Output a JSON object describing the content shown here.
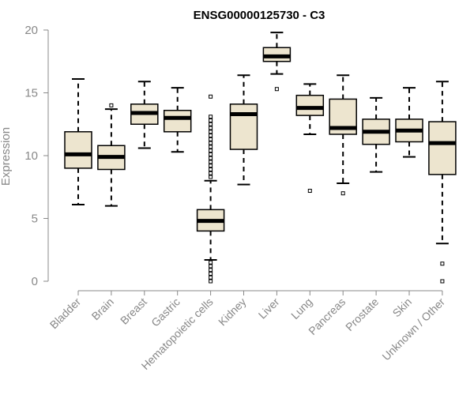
{
  "chart_data": {
    "type": "boxplot",
    "title": "ENSG00000125730 - C3",
    "xlabel": "",
    "ylabel": "Expression",
    "ylim": [
      0,
      20
    ],
    "yticks": [
      0,
      5,
      10,
      15,
      20
    ],
    "box_color": "#ede5cf",
    "line_color": "#000000",
    "axis_color": "#888888",
    "categories": [
      "Bladder",
      "Brain",
      "Breast",
      "Gastric",
      "Hematopoietic cells",
      "Kidney",
      "Liver",
      "Lung",
      "Pancreas",
      "Prostate",
      "Skin",
      "Unknown / Other"
    ],
    "boxes": [
      {
        "min": 6.1,
        "q1": 9.0,
        "median": 10.1,
        "q3": 11.9,
        "max": 16.1,
        "outliers": []
      },
      {
        "min": 6.0,
        "q1": 8.9,
        "median": 9.9,
        "q3": 10.8,
        "max": 13.7,
        "outliers": [
          14.0
        ]
      },
      {
        "min": 10.6,
        "q1": 12.5,
        "median": 13.4,
        "q3": 14.1,
        "max": 15.9,
        "outliers": []
      },
      {
        "min": 10.3,
        "q1": 11.9,
        "median": 13.0,
        "q3": 13.6,
        "max": 15.4,
        "outliers": []
      },
      {
        "min": 1.7,
        "q1": 4.0,
        "median": 4.8,
        "q3": 5.7,
        "max": 8.0,
        "outliers": [
          0.0,
          0.3,
          0.6,
          0.9,
          1.2,
          1.5,
          8.3,
          8.6,
          8.9,
          9.2,
          9.5,
          9.8,
          10.1,
          10.4,
          10.7,
          11.0,
          11.3,
          11.6,
          11.9,
          12.2,
          12.5,
          12.8,
          13.1,
          14.7
        ]
      },
      {
        "min": 7.7,
        "q1": 10.5,
        "median": 13.3,
        "q3": 14.1,
        "max": 16.4,
        "outliers": []
      },
      {
        "min": 16.5,
        "q1": 17.5,
        "median": 17.9,
        "q3": 18.6,
        "max": 19.8,
        "outliers": [
          15.3
        ]
      },
      {
        "min": 11.7,
        "q1": 13.2,
        "median": 13.8,
        "q3": 14.8,
        "max": 15.7,
        "outliers": [
          7.2
        ]
      },
      {
        "min": 7.8,
        "q1": 11.7,
        "median": 12.2,
        "q3": 14.5,
        "max": 16.4,
        "outliers": [
          7.0
        ]
      },
      {
        "min": 8.7,
        "q1": 10.9,
        "median": 11.9,
        "q3": 12.9,
        "max": 14.6,
        "outliers": []
      },
      {
        "min": 9.9,
        "q1": 11.1,
        "median": 12.0,
        "q3": 12.9,
        "max": 15.4,
        "outliers": []
      },
      {
        "min": 3.0,
        "q1": 8.5,
        "median": 11.0,
        "q3": 12.7,
        "max": 15.9,
        "outliers": [
          0.0,
          1.4
        ]
      }
    ]
  }
}
